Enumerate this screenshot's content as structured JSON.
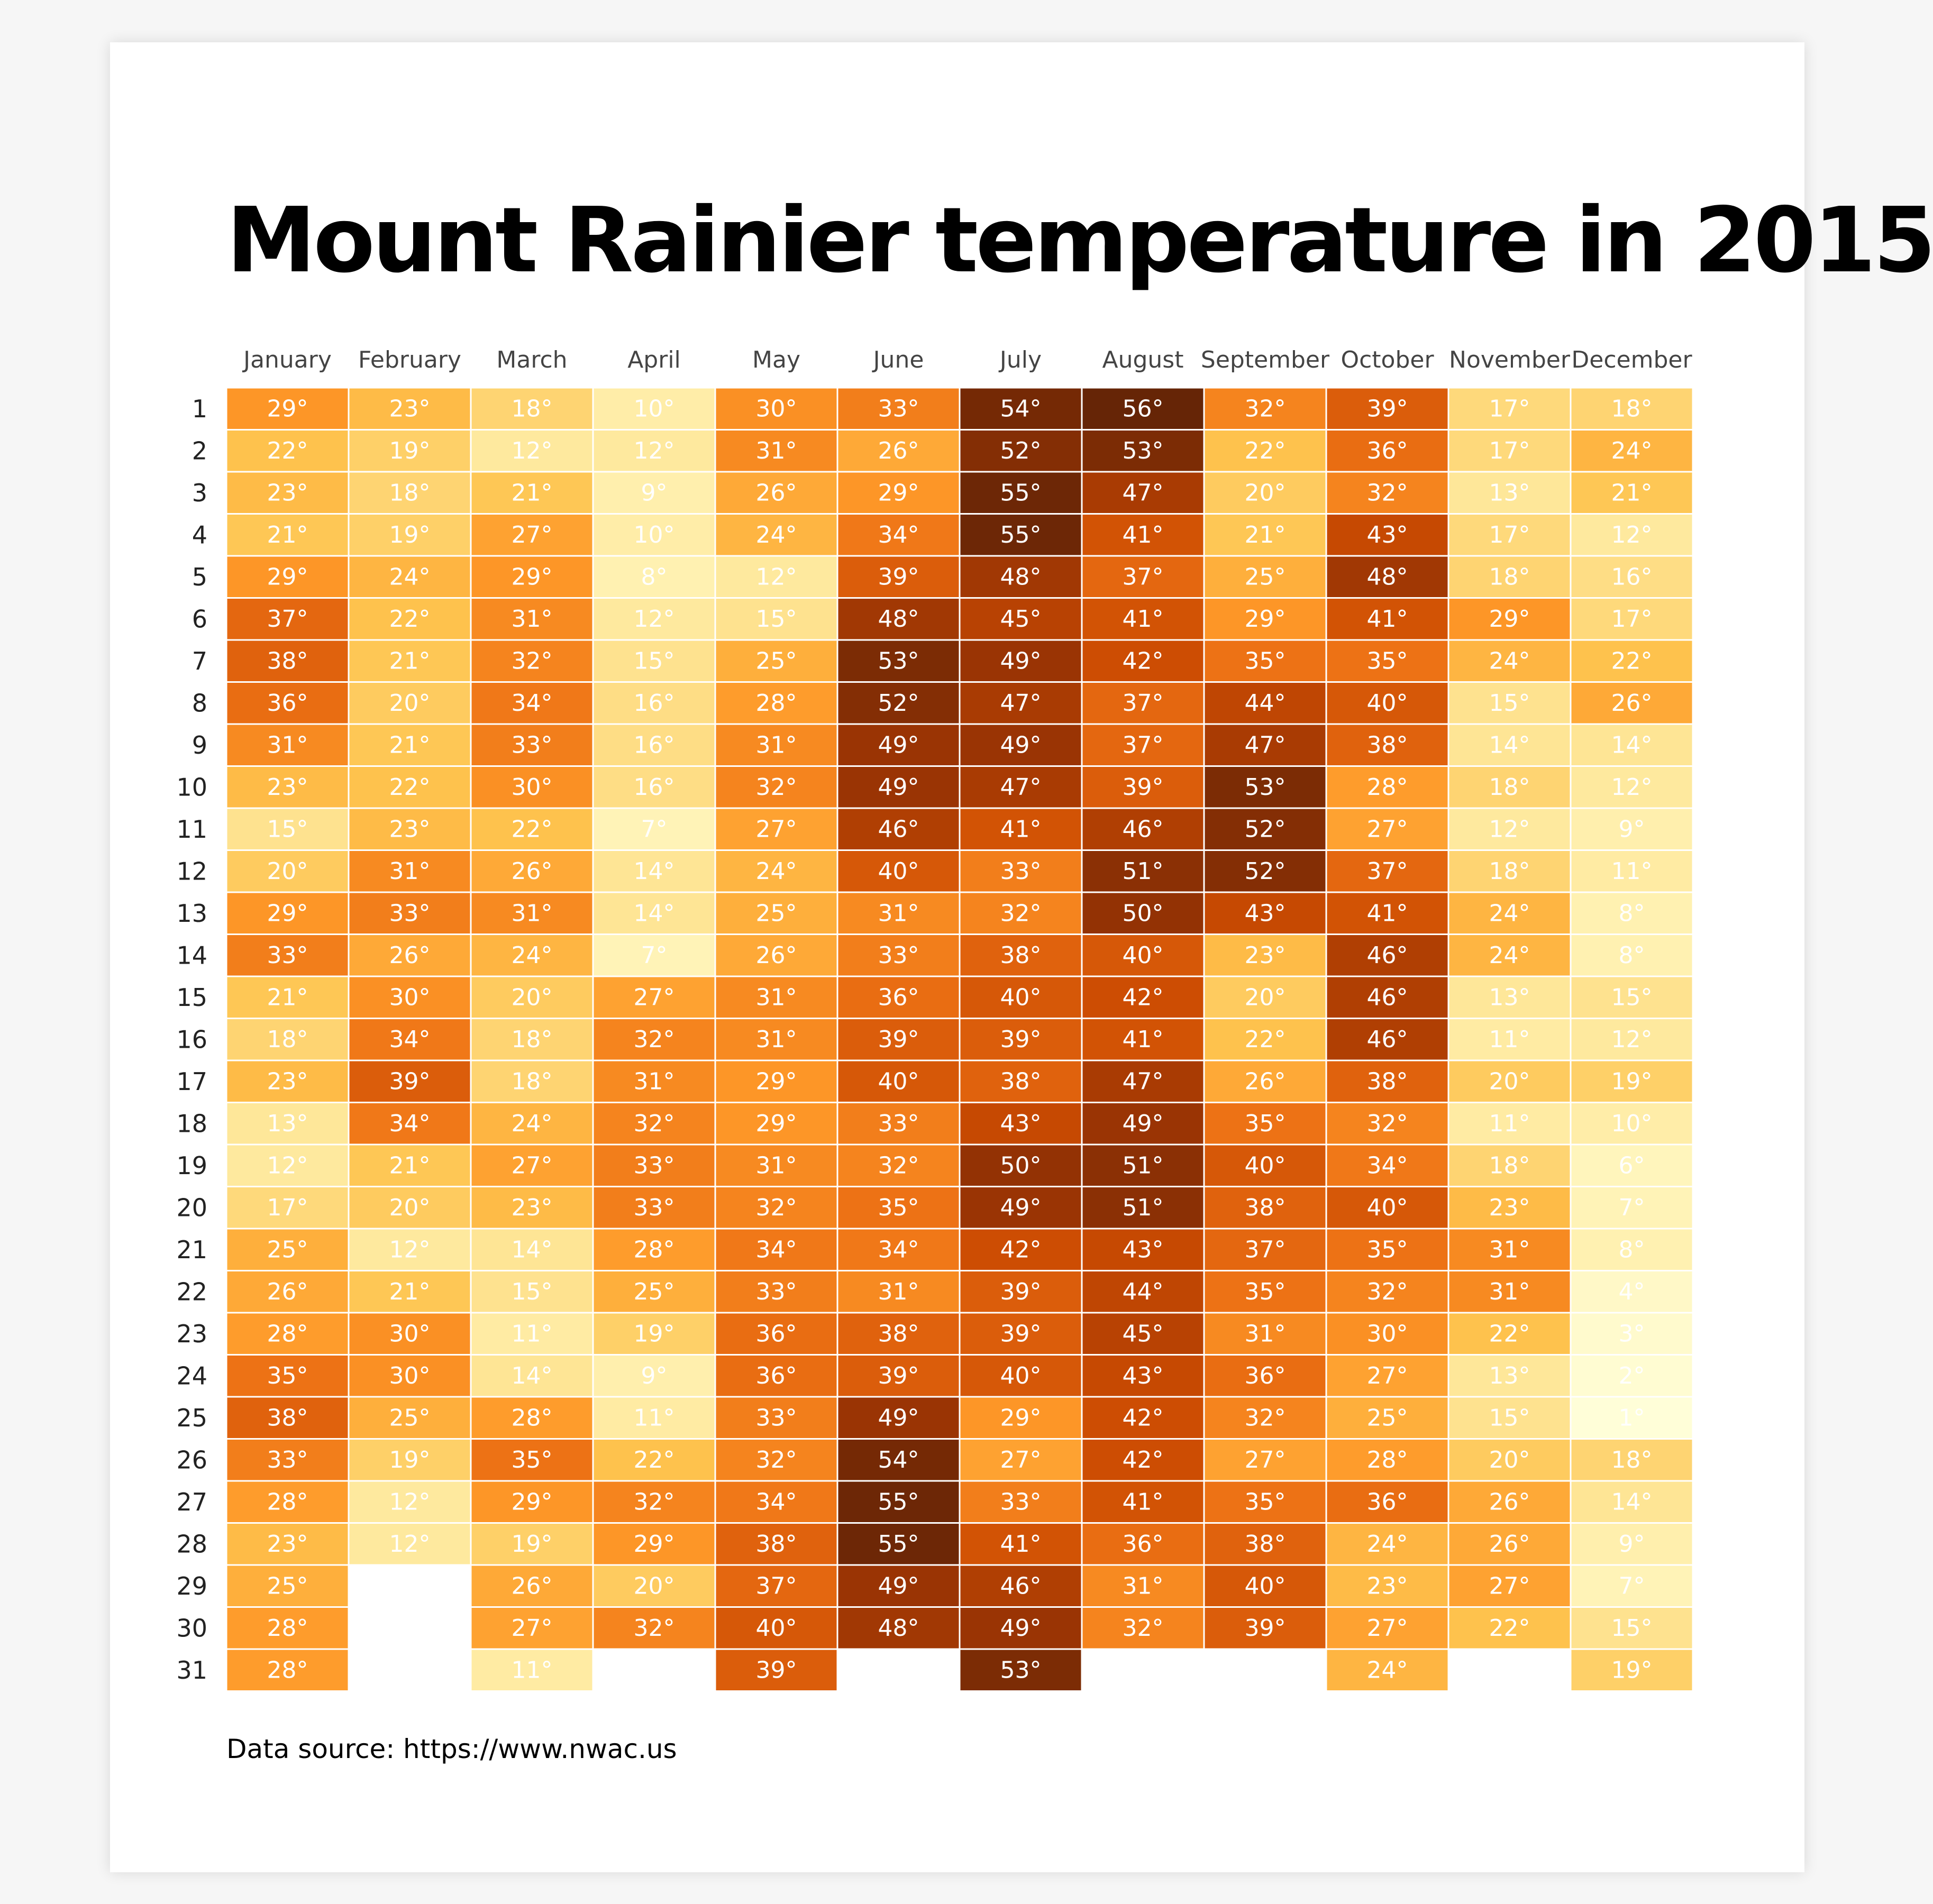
{
  "title": "Mount Rainier temperature in 2015",
  "source": "Data source: https://www.nwac.us",
  "unit_suffix": "°",
  "chart_data": {
    "type": "heatmap",
    "title": "Mount Rainier temperature in 2015",
    "x_categories": [
      "January",
      "February",
      "March",
      "April",
      "May",
      "June",
      "July",
      "August",
      "September",
      "October",
      "November",
      "December"
    ],
    "y_categories": [
      "1",
      "2",
      "3",
      "4",
      "5",
      "6",
      "7",
      "8",
      "9",
      "10",
      "11",
      "12",
      "13",
      "14",
      "15",
      "16",
      "17",
      "18",
      "19",
      "20",
      "21",
      "22",
      "23",
      "24",
      "25",
      "26",
      "27",
      "28",
      "29",
      "30",
      "31"
    ],
    "values": [
      [
        29,
        22,
        23,
        21,
        29,
        37,
        38,
        36,
        31,
        23,
        15,
        20,
        29,
        33,
        21,
        18,
        23,
        13,
        12,
        17,
        25,
        26,
        28,
        35,
        38,
        33,
        28,
        23,
        25,
        28,
        28
      ],
      [
        23,
        19,
        18,
        19,
        24,
        22,
        21,
        20,
        21,
        22,
        23,
        31,
        33,
        26,
        30,
        34,
        39,
        34,
        21,
        20,
        12,
        21,
        30,
        30,
        25,
        19,
        12,
        12,
        null,
        null,
        null
      ],
      [
        18,
        12,
        21,
        27,
        29,
        31,
        32,
        34,
        33,
        30,
        22,
        26,
        31,
        24,
        20,
        18,
        18,
        24,
        27,
        23,
        14,
        15,
        11,
        14,
        28,
        35,
        29,
        19,
        26,
        27,
        11
      ],
      [
        10,
        12,
        9,
        10,
        8,
        12,
        15,
        16,
        16,
        16,
        7,
        14,
        14,
        7,
        27,
        32,
        31,
        32,
        33,
        33,
        28,
        25,
        19,
        9,
        11,
        22,
        32,
        29,
        20,
        32,
        null
      ],
      [
        30,
        31,
        26,
        24,
        12,
        15,
        25,
        28,
        31,
        32,
        27,
        24,
        25,
        26,
        31,
        31,
        29,
        29,
        31,
        32,
        34,
        33,
        36,
        36,
        33,
        32,
        34,
        38,
        37,
        40,
        39
      ],
      [
        33,
        26,
        29,
        34,
        39,
        48,
        53,
        52,
        49,
        49,
        46,
        40,
        31,
        33,
        36,
        39,
        40,
        33,
        32,
        35,
        34,
        31,
        38,
        39,
        49,
        54,
        55,
        55,
        49,
        48,
        null
      ],
      [
        54,
        52,
        55,
        55,
        48,
        45,
        49,
        47,
        49,
        47,
        41,
        33,
        32,
        38,
        40,
        39,
        38,
        43,
        50,
        49,
        42,
        39,
        39,
        40,
        29,
        27,
        33,
        41,
        46,
        49,
        53
      ],
      [
        56,
        53,
        47,
        41,
        37,
        41,
        42,
        37,
        37,
        39,
        46,
        51,
        50,
        40,
        42,
        41,
        47,
        49,
        51,
        51,
        43,
        44,
        45,
        43,
        42,
        42,
        41,
        36,
        31,
        32,
        null
      ],
      [
        32,
        22,
        20,
        21,
        25,
        29,
        35,
        44,
        47,
        53,
        52,
        52,
        43,
        23,
        20,
        22,
        26,
        35,
        40,
        38,
        37,
        35,
        31,
        36,
        32,
        27,
        35,
        38,
        40,
        39,
        null
      ],
      [
        39,
        36,
        32,
        43,
        48,
        41,
        35,
        40,
        38,
        28,
        27,
        37,
        41,
        46,
        46,
        46,
        38,
        32,
        34,
        40,
        35,
        32,
        30,
        27,
        25,
        28,
        36,
        24,
        23,
        27,
        24
      ],
      [
        17,
        17,
        13,
        17,
        18,
        29,
        24,
        15,
        14,
        18,
        12,
        18,
        24,
        24,
        13,
        11,
        20,
        11,
        18,
        23,
        31,
        31,
        22,
        13,
        15,
        20,
        26,
        26,
        27,
        22,
        null
      ],
      [
        18,
        24,
        21,
        12,
        16,
        17,
        22,
        26,
        14,
        12,
        9,
        11,
        8,
        8,
        15,
        12,
        19,
        10,
        6,
        7,
        8,
        4,
        3,
        2,
        1,
        18,
        14,
        9,
        7,
        15,
        19
      ]
    ],
    "value_unit": "°F",
    "color_scale": {
      "type": "sequential",
      "domain": [
        1,
        56
      ],
      "colors": [
        "#fffed8",
        "#fff1b2",
        "#fee391",
        "#fec44f",
        "#fe9929",
        "#ec7014",
        "#cc4c02",
        "#993404",
        "#662506"
      ]
    },
    "cell_label_color": "#ffffff",
    "grid": false,
    "legend": "none"
  }
}
